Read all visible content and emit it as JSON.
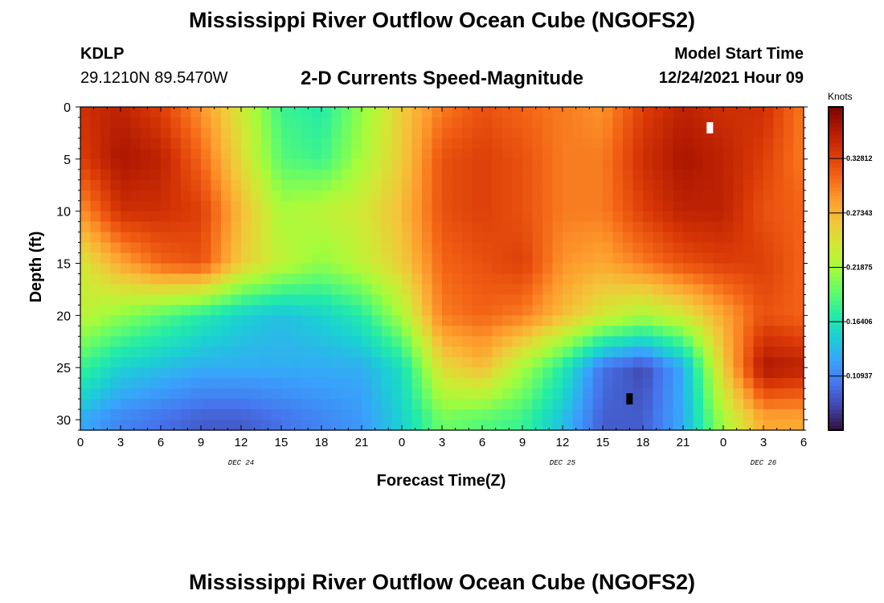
{
  "title": "Mississippi River Outflow Ocean Cube (NGOFS2)",
  "station": {
    "id": "KDLP",
    "coords": "29.1210N  89.5470W"
  },
  "plot_title": "2-D Currents Speed-Magnitude",
  "model": {
    "label": "Model Start Time",
    "time": "12/24/2021 Hour 09"
  },
  "colors": {
    "colormap": [
      "#30123b",
      "#4145ab",
      "#4675ed",
      "#39a2fc",
      "#1bcfd4",
      "#24eca6",
      "#61fc6c",
      "#a4fc3b",
      "#d1e834",
      "#f3c63a",
      "#fe9b2d",
      "#f36315",
      "#d93806",
      "#b11901",
      "#7a0403"
    ],
    "marker_max": "#ffffff",
    "marker_min": "#000000"
  },
  "chart_data": {
    "type": "heatmap",
    "title": "2-D Currents Speed-Magnitude",
    "xlabel": "Forecast Time(Z)",
    "ylabel": "Depth (ft)",
    "x_tick_labels": [
      "0",
      "3",
      "6",
      "9",
      "12",
      "15",
      "18",
      "21",
      "0",
      "3",
      "6",
      "9",
      "12",
      "15",
      "18",
      "21",
      "0",
      "3",
      "6"
    ],
    "x_range_hours": [
      0,
      54
    ],
    "date_labels": [
      {
        "text": "DEC 24",
        "hour": 12
      },
      {
        "text": "DEC 25",
        "hour": 36
      },
      {
        "text": "DEC 26",
        "hour": 51
      }
    ],
    "y_ticks": [
      0,
      5,
      10,
      15,
      20,
      25,
      30
    ],
    "ylim": [
      31,
      0
    ],
    "colorbar": {
      "label": "Knots",
      "ticks": [
        "0.32812",
        "0.27343",
        "0.21875",
        "0.16406",
        "0.10937"
      ],
      "tick_values": [
        0.32812,
        0.27343,
        0.21875,
        0.16406,
        0.10937
      ],
      "range": [
        0.055,
        0.38
      ]
    },
    "grid": false,
    "max_marker": {
      "hour": 47,
      "depth": 2
    },
    "min_marker": {
      "hour": 41,
      "depth": 28
    },
    "speed_field": {
      "hours": [
        0,
        3,
        6,
        9,
        12,
        15,
        18,
        21,
        24,
        27,
        30,
        33,
        36,
        39,
        42,
        45,
        48,
        51,
        54
      ],
      "depths": [
        0,
        5,
        10,
        15,
        20,
        25,
        30
      ],
      "values": [
        [
          0.34,
          0.35,
          0.33,
          0.29,
          0.24,
          0.18,
          0.17,
          0.21,
          0.26,
          0.3,
          0.32,
          0.31,
          0.3,
          0.29,
          0.33,
          0.35,
          0.34,
          0.34,
          0.3
        ],
        [
          0.33,
          0.36,
          0.35,
          0.31,
          0.25,
          0.19,
          0.18,
          0.22,
          0.26,
          0.32,
          0.33,
          0.32,
          0.3,
          0.3,
          0.34,
          0.36,
          0.35,
          0.33,
          0.3
        ],
        [
          0.29,
          0.34,
          0.34,
          0.33,
          0.27,
          0.22,
          0.23,
          0.24,
          0.27,
          0.32,
          0.33,
          0.32,
          0.3,
          0.3,
          0.33,
          0.35,
          0.35,
          0.32,
          0.31
        ],
        [
          0.24,
          0.28,
          0.31,
          0.32,
          0.26,
          0.23,
          0.21,
          0.23,
          0.26,
          0.31,
          0.32,
          0.33,
          0.29,
          0.28,
          0.3,
          0.32,
          0.33,
          0.33,
          0.31
        ],
        [
          0.23,
          0.21,
          0.19,
          0.17,
          0.15,
          0.14,
          0.15,
          0.17,
          0.22,
          0.3,
          0.31,
          0.3,
          0.27,
          0.24,
          0.22,
          0.24,
          0.28,
          0.32,
          0.31
        ],
        [
          0.18,
          0.15,
          0.14,
          0.13,
          0.13,
          0.13,
          0.13,
          0.13,
          0.16,
          0.25,
          0.27,
          0.22,
          0.17,
          0.1,
          0.08,
          0.13,
          0.26,
          0.36,
          0.35
        ],
        [
          0.13,
          0.11,
          0.1,
          0.09,
          0.09,
          0.1,
          0.11,
          0.12,
          0.15,
          0.2,
          0.19,
          0.18,
          0.14,
          0.09,
          0.09,
          0.13,
          0.22,
          0.28,
          0.28
        ]
      ]
    }
  }
}
